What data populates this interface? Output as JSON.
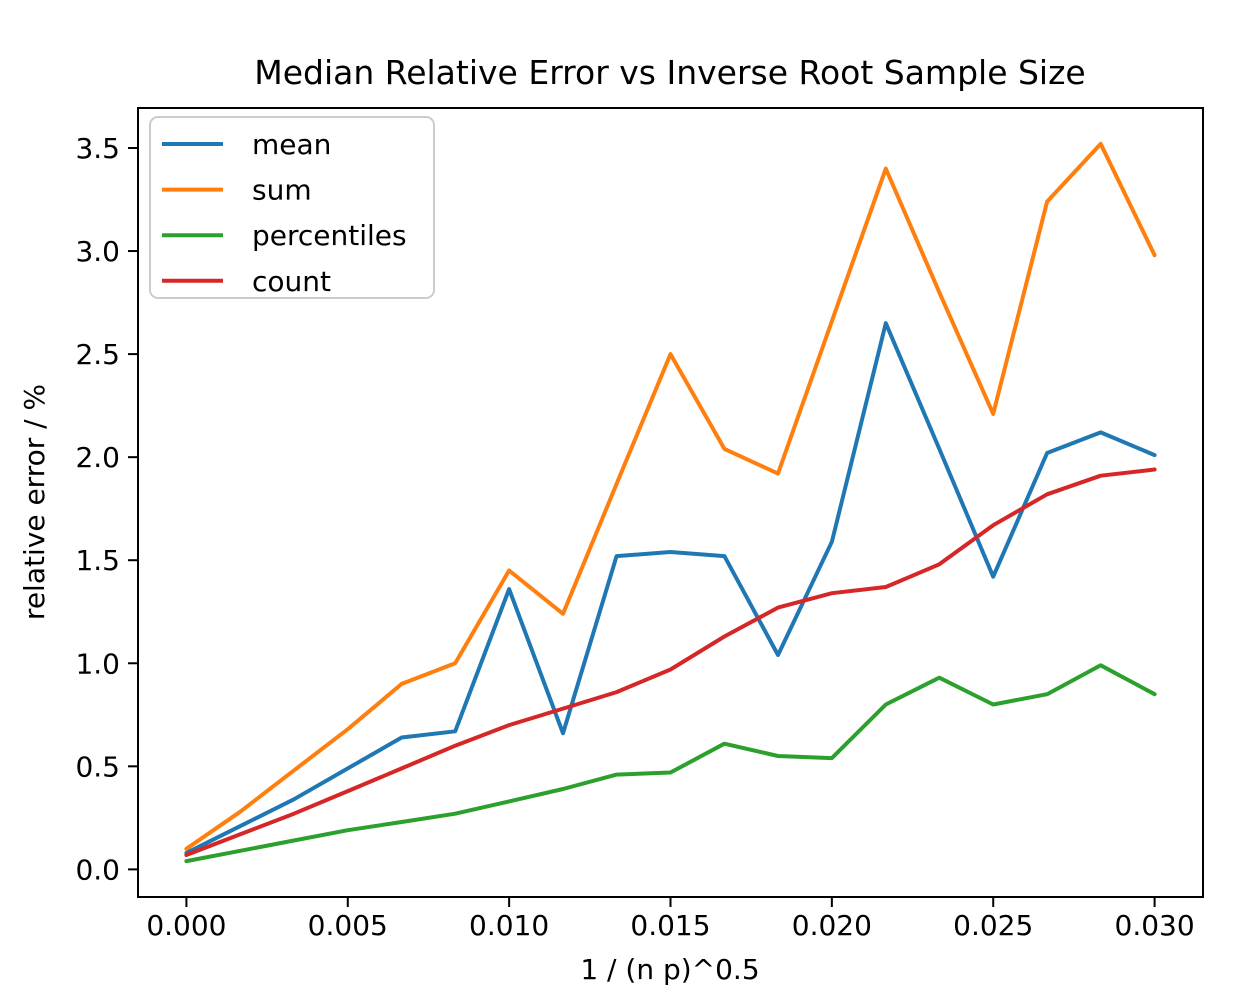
{
  "chart_data": {
    "type": "line",
    "title": "Median Relative Error vs Inverse Root Sample Size",
    "xlabel": "1 / (n p)^0.5",
    "ylabel": "relative error / %",
    "x": [
      0.0,
      0.00167,
      0.00333,
      0.005,
      0.00667,
      0.00833,
      0.01,
      0.01167,
      0.01333,
      0.015,
      0.01667,
      0.01833,
      0.02,
      0.02167,
      0.02333,
      0.025,
      0.02667,
      0.02833,
      0.03
    ],
    "series": [
      {
        "name": "mean",
        "color": "#1f77b4",
        "values": [
          0.08,
          0.21,
          0.34,
          0.49,
          0.64,
          0.67,
          1.36,
          0.66,
          1.52,
          1.54,
          1.52,
          1.04,
          1.59,
          2.65,
          2.04,
          1.42,
          2.02,
          2.12,
          2.01
        ]
      },
      {
        "name": "sum",
        "color": "#ff7f0e",
        "values": [
          0.1,
          0.28,
          0.48,
          0.68,
          0.9,
          1.0,
          1.45,
          1.24,
          1.87,
          2.5,
          2.04,
          1.92,
          2.66,
          3.4,
          2.8,
          2.21,
          3.24,
          3.52,
          2.98
        ]
      },
      {
        "name": "percentiles",
        "color": "#2ca02c",
        "values": [
          0.04,
          0.09,
          0.14,
          0.19,
          0.23,
          0.27,
          0.33,
          0.39,
          0.46,
          0.47,
          0.61,
          0.55,
          0.54,
          0.8,
          0.93,
          0.8,
          0.85,
          0.99,
          0.85
        ]
      },
      {
        "name": "count",
        "color": "#d62728",
        "values": [
          0.07,
          0.17,
          0.27,
          0.38,
          0.49,
          0.6,
          0.7,
          0.78,
          0.86,
          0.97,
          1.13,
          1.27,
          1.34,
          1.37,
          1.48,
          1.67,
          1.82,
          1.91,
          1.94
        ]
      }
    ],
    "xticks": {
      "values": [
        0.0,
        0.005,
        0.01,
        0.015,
        0.02,
        0.025,
        0.03
      ],
      "labels": [
        "0.000",
        "0.005",
        "0.010",
        "0.015",
        "0.020",
        "0.025",
        "0.030"
      ]
    },
    "yticks": {
      "values": [
        0.0,
        0.5,
        1.0,
        1.5,
        2.0,
        2.5,
        3.0,
        3.5
      ],
      "labels": [
        "0.0",
        "0.5",
        "1.0",
        "1.5",
        "2.0",
        "2.5",
        "3.0",
        "3.5"
      ]
    },
    "xlim": [
      -0.0015,
      0.0315
    ],
    "ylim": [
      -0.134,
      3.694
    ],
    "legend": {
      "position": "upper left",
      "entries": [
        "mean",
        "sum",
        "percentiles",
        "count"
      ]
    },
    "grid": false,
    "background": "#ffffff"
  }
}
